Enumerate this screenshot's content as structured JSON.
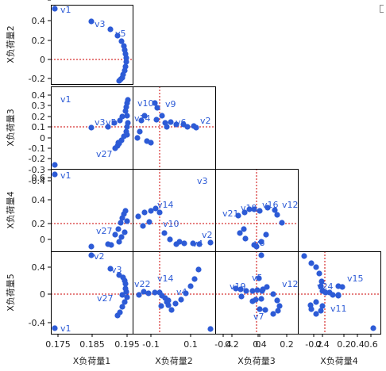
{
  "chart_data": {
    "type": "scatter",
    "layout": "scatterplot-matrix-lower-triangle",
    "columns": [
      "X负荷量1",
      "X负荷量2",
      "X负荷量3",
      "X负荷量4"
    ],
    "rows": [
      "X负荷量2",
      "X负荷量3",
      "X负荷量4",
      "X负荷量5"
    ],
    "x_ticks": [
      [
        "0.175",
        "0.185",
        "0.195"
      ],
      [
        "-0.1",
        "0.1",
        "0.2",
        "0.4"
      ],
      [
        "-0.4",
        "0",
        "0.2",
        "0.4"
      ],
      [
        "-0.2",
        "0.2",
        "0.4",
        "0.6"
      ]
    ],
    "y_ticks": [
      [
        "0.4",
        "0.2",
        "0",
        "-0.2"
      ],
      [
        "0.4",
        "0.3",
        "0.2",
        "0.1",
        "0",
        "-0.1",
        "-0.2",
        "-0.3",
        "-0.4"
      ],
      [
        "0.6",
        "0.4",
        "0.2",
        "0",
        "-0.2"
      ],
      [
        "0.4",
        "0",
        "-0.4"
      ]
    ],
    "marker_color": "#2d5bd6",
    "reference_line_color": "#cc0000",
    "point_labels": [
      [
        "v1",
        "v3",
        "v5"
      ],
      [
        "v1",
        "v3",
        "v5",
        "v10",
        "v9",
        "v14",
        "v2",
        "v27",
        "v6"
      ],
      [
        "v1",
        "v27",
        "v14",
        "v10",
        "v2",
        "v3",
        "v4",
        "v19",
        "v16",
        "v12",
        "v21",
        "v8"
      ],
      [
        "v2",
        "v3",
        "v1",
        "v27",
        "v14",
        "v22",
        "v4",
        "v19",
        "v5",
        "v12",
        "v7",
        "v24",
        "v15",
        "v11"
      ]
    ]
  }
}
